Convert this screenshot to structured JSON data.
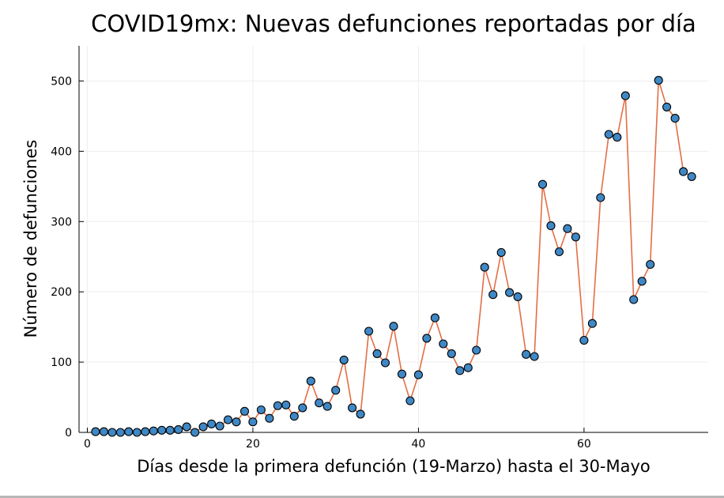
{
  "chart_data": {
    "type": "line",
    "title": "COVID19mx: Nuevas defunciones reportadas por día",
    "xlabel": "Días desde la primera defunción (19-Marzo) hasta el 30-Mayo",
    "ylabel": "Número de defunciones",
    "xlim": [
      -1,
      75
    ],
    "ylim": [
      0,
      550
    ],
    "x_ticks": [
      0,
      20,
      40,
      60
    ],
    "y_ticks": [
      0,
      100,
      200,
      300,
      400,
      500
    ],
    "grid": true,
    "legend": "none",
    "line_color": "#e26f46",
    "marker_color": "#3f88c5",
    "marker_edge_color": "#000000",
    "series": [
      {
        "x": [
          1,
          2,
          3,
          4,
          5,
          6,
          7,
          8,
          9,
          10,
          11,
          12,
          13,
          14,
          15,
          16,
          17,
          18,
          19,
          20,
          21,
          22,
          23,
          24,
          25,
          26,
          27,
          28,
          29,
          30,
          31,
          32,
          33,
          34,
          35,
          36,
          37,
          38,
          39,
          40,
          41,
          42,
          43,
          44,
          45,
          46,
          47,
          48,
          49,
          50,
          51,
          52,
          53,
          54,
          55,
          56,
          57,
          58,
          59,
          60,
          61,
          62,
          63,
          64,
          65,
          66,
          67,
          68,
          69,
          70,
          71,
          72,
          73
        ],
        "values": [
          1,
          1,
          0,
          0,
          1,
          0,
          1,
          2,
          3,
          3,
          4,
          8,
          0,
          8,
          12,
          9,
          18,
          15,
          30,
          15,
          32,
          20,
          38,
          39,
          23,
          35,
          73,
          42,
          37,
          60,
          103,
          35,
          26,
          144,
          112,
          99,
          151,
          83,
          45,
          82,
          134,
          163,
          126,
          112,
          88,
          92,
          117,
          235,
          196,
          256,
          199,
          193,
          111,
          108,
          353,
          294,
          257,
          290,
          278,
          131,
          155,
          334,
          424,
          420,
          479,
          189,
          215,
          239,
          501,
          463,
          447,
          371,
          364
        ]
      }
    ]
  }
}
